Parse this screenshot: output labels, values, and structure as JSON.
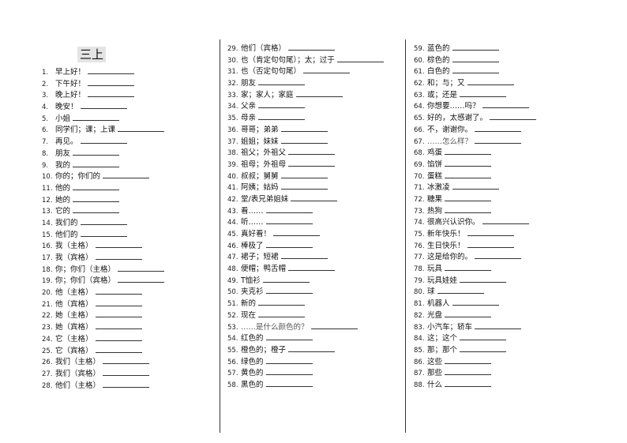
{
  "title": "三上",
  "columns": [
    [
      {
        "n": "1.",
        "t": "早上好！"
      },
      {
        "n": "2.",
        "t": "下午好！"
      },
      {
        "n": "3.",
        "t": "晚上好！"
      },
      {
        "n": "4.",
        "t": "晚安！"
      },
      {
        "n": "5.",
        "t": "小姐"
      },
      {
        "n": "6.",
        "t": "同学们；课；上课"
      },
      {
        "n": "7.",
        "t": "再见。"
      },
      {
        "n": "8.",
        "t": "朋友"
      },
      {
        "n": "9.",
        "t": "我的"
      },
      {
        "n": "10.",
        "t": "你的；你们的"
      },
      {
        "n": "11.",
        "t": "他的"
      },
      {
        "n": "12.",
        "t": "她的"
      },
      {
        "n": "13.",
        "t": "它的"
      },
      {
        "n": "14.",
        "t": "我们的"
      },
      {
        "n": "15.",
        "t": "他们的"
      },
      {
        "n": "16.",
        "t": "我（主格）"
      },
      {
        "n": "17.",
        "t": "我（宾格）"
      },
      {
        "n": "18.",
        "t": "你；你们（主格）"
      },
      {
        "n": "19.",
        "t": "你；你们（宾格）"
      },
      {
        "n": "20.",
        "t": "他（主格）"
      },
      {
        "n": "21.",
        "t": "他（宾格）"
      },
      {
        "n": "22.",
        "t": "她（主格）"
      },
      {
        "n": "23.",
        "t": "她（宾格）"
      },
      {
        "n": "24.",
        "t": "它（主格）"
      },
      {
        "n": "25.",
        "t": "它（宾格）"
      },
      {
        "n": "26.",
        "t": "我们（主格）"
      },
      {
        "n": "27.",
        "t": "我们（宾格）"
      },
      {
        "n": "28.",
        "t": "他们（主格）"
      }
    ],
    [
      {
        "n": "29.",
        "t": "他们（宾格）"
      },
      {
        "n": "30.",
        "t": "也（肯定句句尾）；太；过于"
      },
      {
        "n": "31.",
        "t": "也（否定句句尾）"
      },
      {
        "n": "32.",
        "t": "朋友"
      },
      {
        "n": "33.",
        "t": "家；家人；家庭"
      },
      {
        "n": "34.",
        "t": "父亲"
      },
      {
        "n": "35.",
        "t": "母亲"
      },
      {
        "n": "36.",
        "t": "哥哥；弟弟"
      },
      {
        "n": "37.",
        "t": "姐姐；妹妹"
      },
      {
        "n": "38.",
        "t": "祖父；外祖父"
      },
      {
        "n": "39.",
        "t": "祖母；外祖母"
      },
      {
        "n": "40.",
        "t": "叔叔；舅舅"
      },
      {
        "n": "41.",
        "t": "阿姨；姑妈"
      },
      {
        "n": "42.",
        "t": "堂/表兄弟姐妹"
      },
      {
        "n": "43.",
        "t": "看……"
      },
      {
        "n": "44.",
        "t": "听……"
      },
      {
        "n": "45.",
        "t": "真好看！"
      },
      {
        "n": "46.",
        "t": "棒极了"
      },
      {
        "n": "47.",
        "t": "裙子；短裙"
      },
      {
        "n": "48.",
        "t": "便帽；鸭舌帽"
      },
      {
        "n": "49.",
        "t": "T恤衫"
      },
      {
        "n": "50.",
        "t": "夹克衫"
      },
      {
        "n": "51.",
        "t": "新的"
      },
      {
        "n": "52.",
        "t": "现在"
      },
      {
        "n": "53.",
        "t": "……是什么颜色的？"
      },
      {
        "n": "54.",
        "t": "红色的"
      },
      {
        "n": "55.",
        "t": "橙色的；橙子"
      },
      {
        "n": "56.",
        "t": "绿色的"
      },
      {
        "n": "57.",
        "t": "黄色的"
      },
      {
        "n": "58.",
        "t": "黑色的"
      }
    ],
    [
      {
        "n": "59.",
        "t": "蓝色的"
      },
      {
        "n": "60.",
        "t": "棕色的"
      },
      {
        "n": "61.",
        "t": "白色的"
      },
      {
        "n": "62.",
        "t": "和；与；又"
      },
      {
        "n": "63.",
        "t": "或；还是"
      },
      {
        "n": "64.",
        "t": "你想要……吗？"
      },
      {
        "n": "65.",
        "t": "好的，太感谢了。"
      },
      {
        "n": "66.",
        "t": "不，谢谢你。"
      },
      {
        "n": "67.",
        "t": "……怎么样？"
      },
      {
        "n": "68.",
        "t": "鸡蛋"
      },
      {
        "n": "69.",
        "t": "馅饼"
      },
      {
        "n": "70.",
        "t": "蛋糕"
      },
      {
        "n": "71.",
        "t": "冰激凌"
      },
      {
        "n": "72.",
        "t": "糖果"
      },
      {
        "n": "73.",
        "t": "热狗"
      },
      {
        "n": "74.",
        "t": "很高兴认识你。"
      },
      {
        "n": "75.",
        "t": "新年快乐！"
      },
      {
        "n": "76.",
        "t": "生日快乐！"
      },
      {
        "n": "77.",
        "t": "这是给你的。"
      },
      {
        "n": "78.",
        "t": "玩具"
      },
      {
        "n": "79.",
        "t": "玩具娃娃"
      },
      {
        "n": "80.",
        "t": "球"
      },
      {
        "n": "81.",
        "t": "机器人"
      },
      {
        "n": "82.",
        "t": "光盘"
      },
      {
        "n": "83.",
        "t": "小汽车；轿车"
      },
      {
        "n": "84.",
        "t": "这；这个"
      },
      {
        "n": "85.",
        "t": "那；那个"
      },
      {
        "n": "86.",
        "t": "这些"
      },
      {
        "n": "87.",
        "t": "那些"
      },
      {
        "n": "88.",
        "t": "什么"
      }
    ]
  ]
}
